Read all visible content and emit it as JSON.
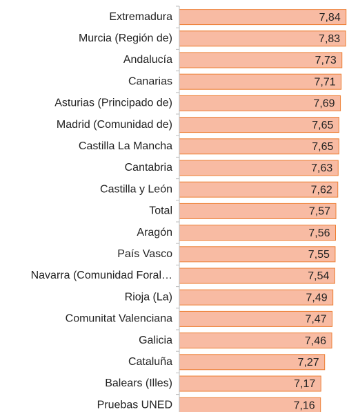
{
  "chart_data": {
    "type": "barh",
    "categories": [
      "Extremadura",
      "Murcia (Región de)",
      "Andalucía",
      "Canarias",
      "Asturias (Principado de)",
      "Madrid (Comunidad de)",
      "Castilla  La Mancha",
      "Cantabria",
      "Castilla y León",
      "Total",
      "Aragón",
      "País Vasco",
      "Navarra (Comunidad Foral…",
      "Rioja (La)",
      "Comunitat Valenciana",
      "Galicia",
      "Cataluña",
      "Balears (Illes)",
      "Pruebas UNED"
    ],
    "values": [
      7.84,
      7.83,
      7.73,
      7.71,
      7.69,
      7.65,
      7.65,
      7.63,
      7.62,
      7.57,
      7.56,
      7.55,
      7.54,
      7.49,
      7.47,
      7.46,
      7.27,
      7.17,
      7.16
    ],
    "value_labels": [
      "7,84",
      "7,83",
      "7,73",
      "7,71",
      "7,69",
      "7,65",
      "7,65",
      "7,63",
      "7,62",
      "7,57",
      "7,56",
      "7,55",
      "7,54",
      "7,49",
      "7,47",
      "7,46",
      "7,27",
      "7,17",
      "7,16"
    ],
    "color": "#f8bba3",
    "edge_color": "#ed7d31",
    "xlim": [
      3.4,
      7.9
    ]
  }
}
